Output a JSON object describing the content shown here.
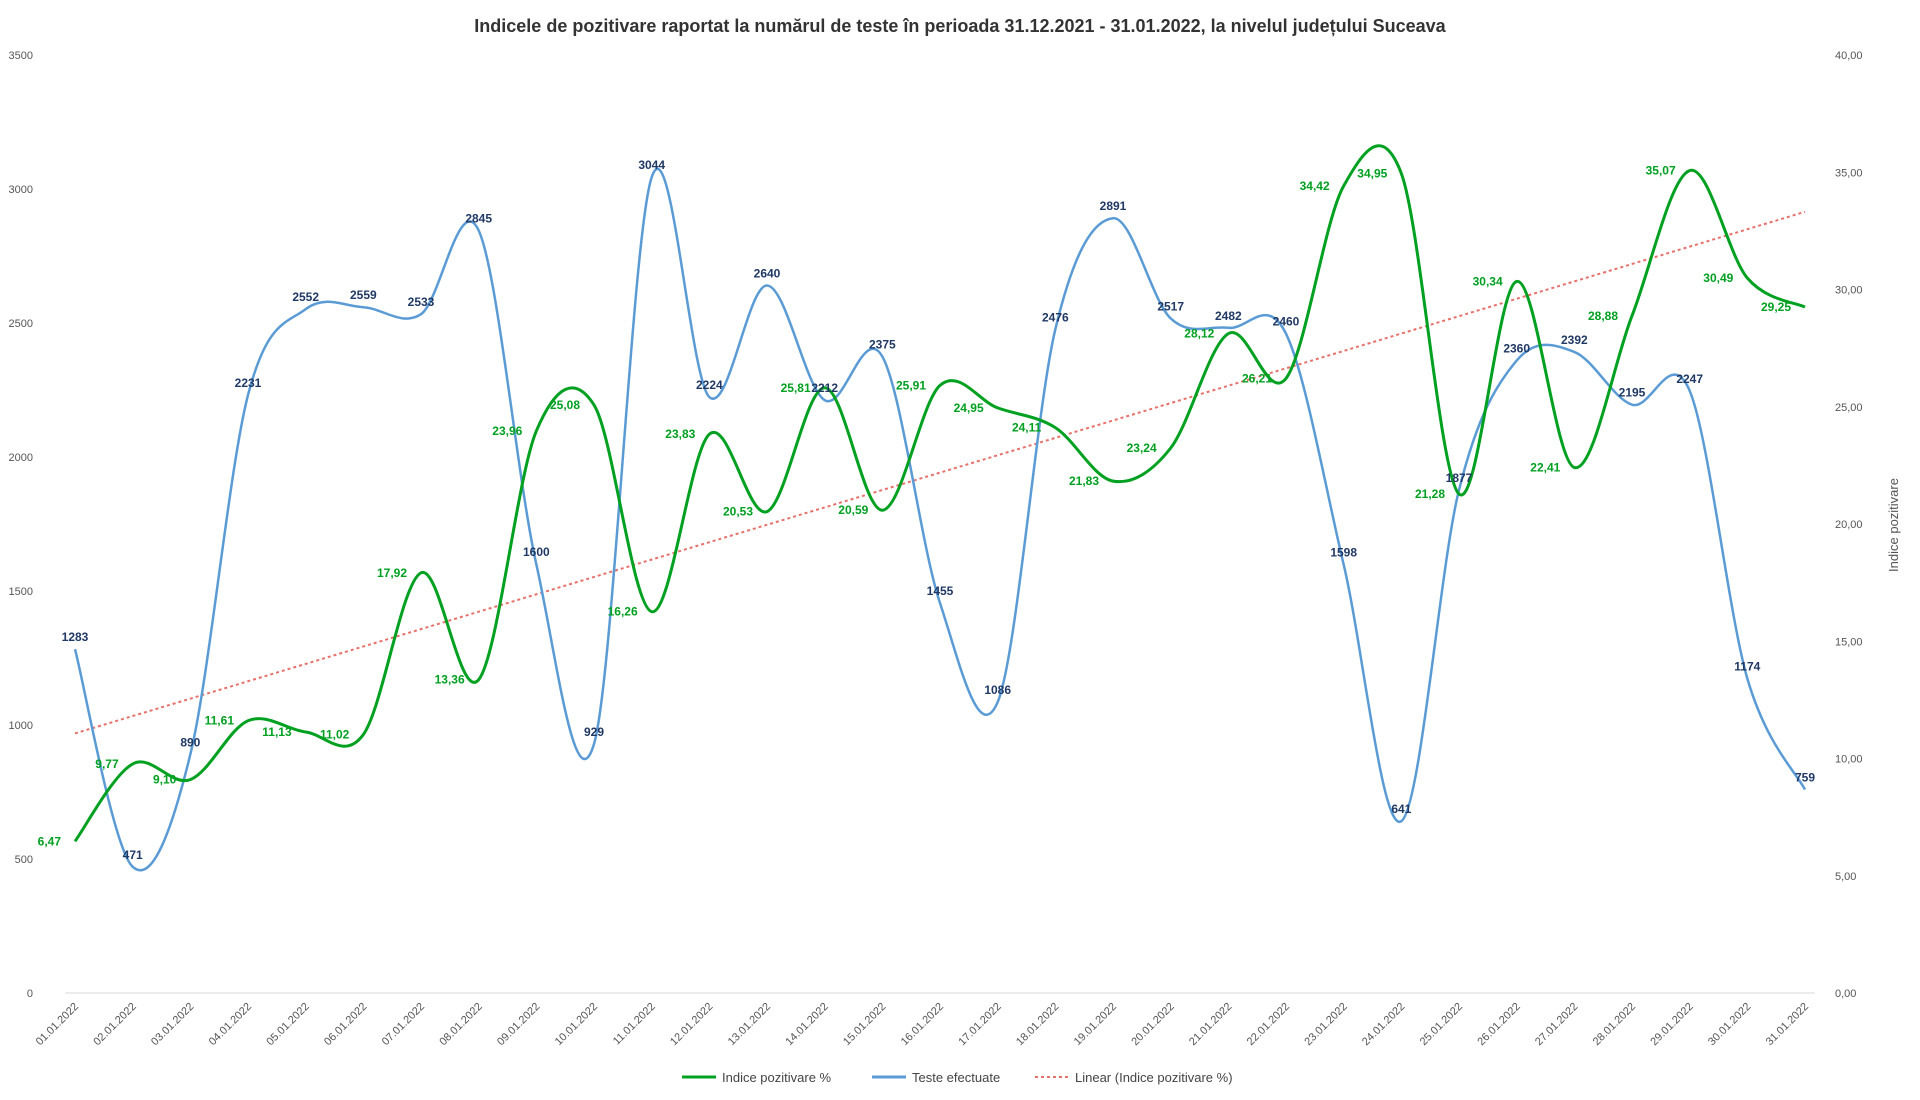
{
  "chart_data": {
    "type": "line",
    "title": "Indicele de pozitivare  raportat la numărul  de teste în perioada  31.12.2021 - 31.01.2022, la nivelul județului  Suceava",
    "y2label": "Indice pozitivare",
    "categories": [
      "01.01.2022",
      "02.01.2022",
      "03.01.2022",
      "04.01.2022",
      "05.01.2022",
      "06.01.2022",
      "07.01.2022",
      "08.01.2022",
      "09.01.2022",
      "10.01.2022",
      "11.01.2022",
      "12.01.2022",
      "13.01.2022",
      "14.01.2022",
      "15.01.2022",
      "16.01.2022",
      "17.01.2022",
      "18.01.2022",
      "19.01.2022",
      "20.01.2022",
      "21.01.2022",
      "22.01.2022",
      "23.01.2022",
      "24.01.2022",
      "25.01.2022",
      "26.01.2022",
      "27.01.2022",
      "28.01.2022",
      "29.01.2022",
      "30.01.2022",
      "31.01.2022"
    ],
    "ylim": [
      0,
      3500
    ],
    "y2lim": [
      0,
      40
    ],
    "y_ticks": [
      "0",
      "500",
      "1000",
      "1500",
      "2000",
      "2500",
      "3000",
      "3500"
    ],
    "y2_ticks": [
      "0,00",
      "5,00",
      "10,00",
      "15,00",
      "20,00",
      "25,00",
      "30,00",
      "35,00",
      "40,00"
    ],
    "grid": false,
    "legend_position": "bottom",
    "series": [
      {
        "name": "Indice pozitivare %",
        "axis": "right",
        "color": "#00a020",
        "values": [
          6.47,
          9.77,
          9.1,
          11.61,
          11.13,
          11.02,
          17.92,
          13.36,
          23.96,
          25.08,
          16.26,
          23.83,
          20.53,
          25.81,
          20.59,
          25.91,
          24.95,
          24.11,
          21.83,
          23.24,
          28.12,
          26.21,
          34.42,
          34.95,
          21.28,
          30.34,
          22.41,
          28.88,
          35.07,
          30.49,
          29.25
        ],
        "labels": [
          "6,47",
          "9,77",
          "9,10",
          "11,61",
          "11,13",
          "11,02",
          "17,92",
          "13,36",
          "23,96",
          "25,08",
          "16,26",
          "23,83",
          "20,53",
          "25,81",
          "20,59",
          "25,91",
          "24,95",
          "24,11",
          "21,83",
          "23,24",
          "28,12",
          "26,21",
          "34,42",
          "34,95",
          "21,28",
          "30,34",
          "22,41",
          "28,88",
          "35,07",
          "30,49",
          "29,25"
        ]
      },
      {
        "name": "Teste efectuate",
        "axis": "left",
        "color": "#5b9bd5",
        "values": [
          1283,
          471,
          890,
          2231,
          2552,
          2559,
          2533,
          2845,
          1600,
          929,
          3044,
          2224,
          2640,
          2212,
          2375,
          1455,
          1086,
          2476,
          2891,
          2517,
          2482,
          2460,
          1598,
          641,
          1877,
          2360,
          2392,
          2195,
          2247,
          1174,
          759
        ],
        "labels": [
          "1283",
          "471",
          "890",
          "2231",
          "2552",
          "2559",
          "2533",
          "2845",
          "1600",
          "929",
          "3044",
          "2224",
          "2640",
          "2212",
          "2375",
          "1455",
          "1086",
          "2476",
          "2891",
          "2517",
          "2482",
          "2460",
          "1598",
          "641",
          "1877",
          "2360",
          "2392",
          "2195",
          "2247",
          "1174",
          "759"
        ]
      },
      {
        "name": "Linear (Indice pozitivare %)",
        "axis": "right",
        "color": "#e8706a",
        "dashed": true,
        "trend_of": 0
      }
    ]
  }
}
